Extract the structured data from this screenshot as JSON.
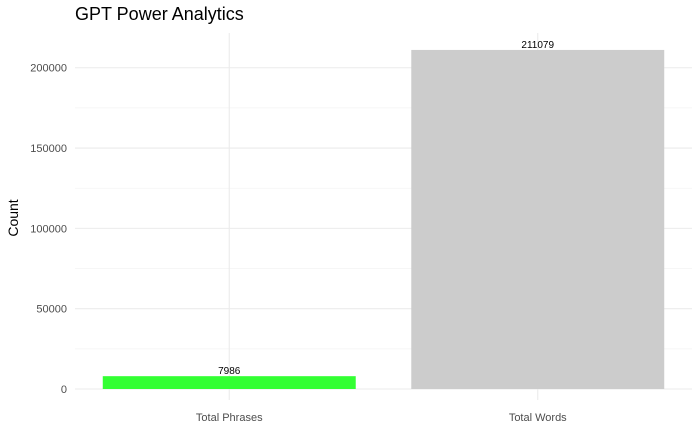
{
  "chart_data": {
    "type": "bar",
    "title": "GPT Power Analytics",
    "xlabel": "",
    "ylabel": "Count",
    "categories": [
      "Total Phrases",
      "Total Words"
    ],
    "values": [
      7986,
      211079
    ],
    "data_labels": [
      "7986",
      "211079"
    ],
    "bar_colors": [
      "#33ff33",
      "#cccccc"
    ],
    "y_ticks": [
      0,
      50000,
      100000,
      150000,
      200000
    ],
    "y_tick_labels": [
      "0",
      "50000",
      "100000",
      "150000",
      "200000"
    ],
    "ylim": [
      0,
      221633
    ],
    "grid": true,
    "legend": "none"
  }
}
